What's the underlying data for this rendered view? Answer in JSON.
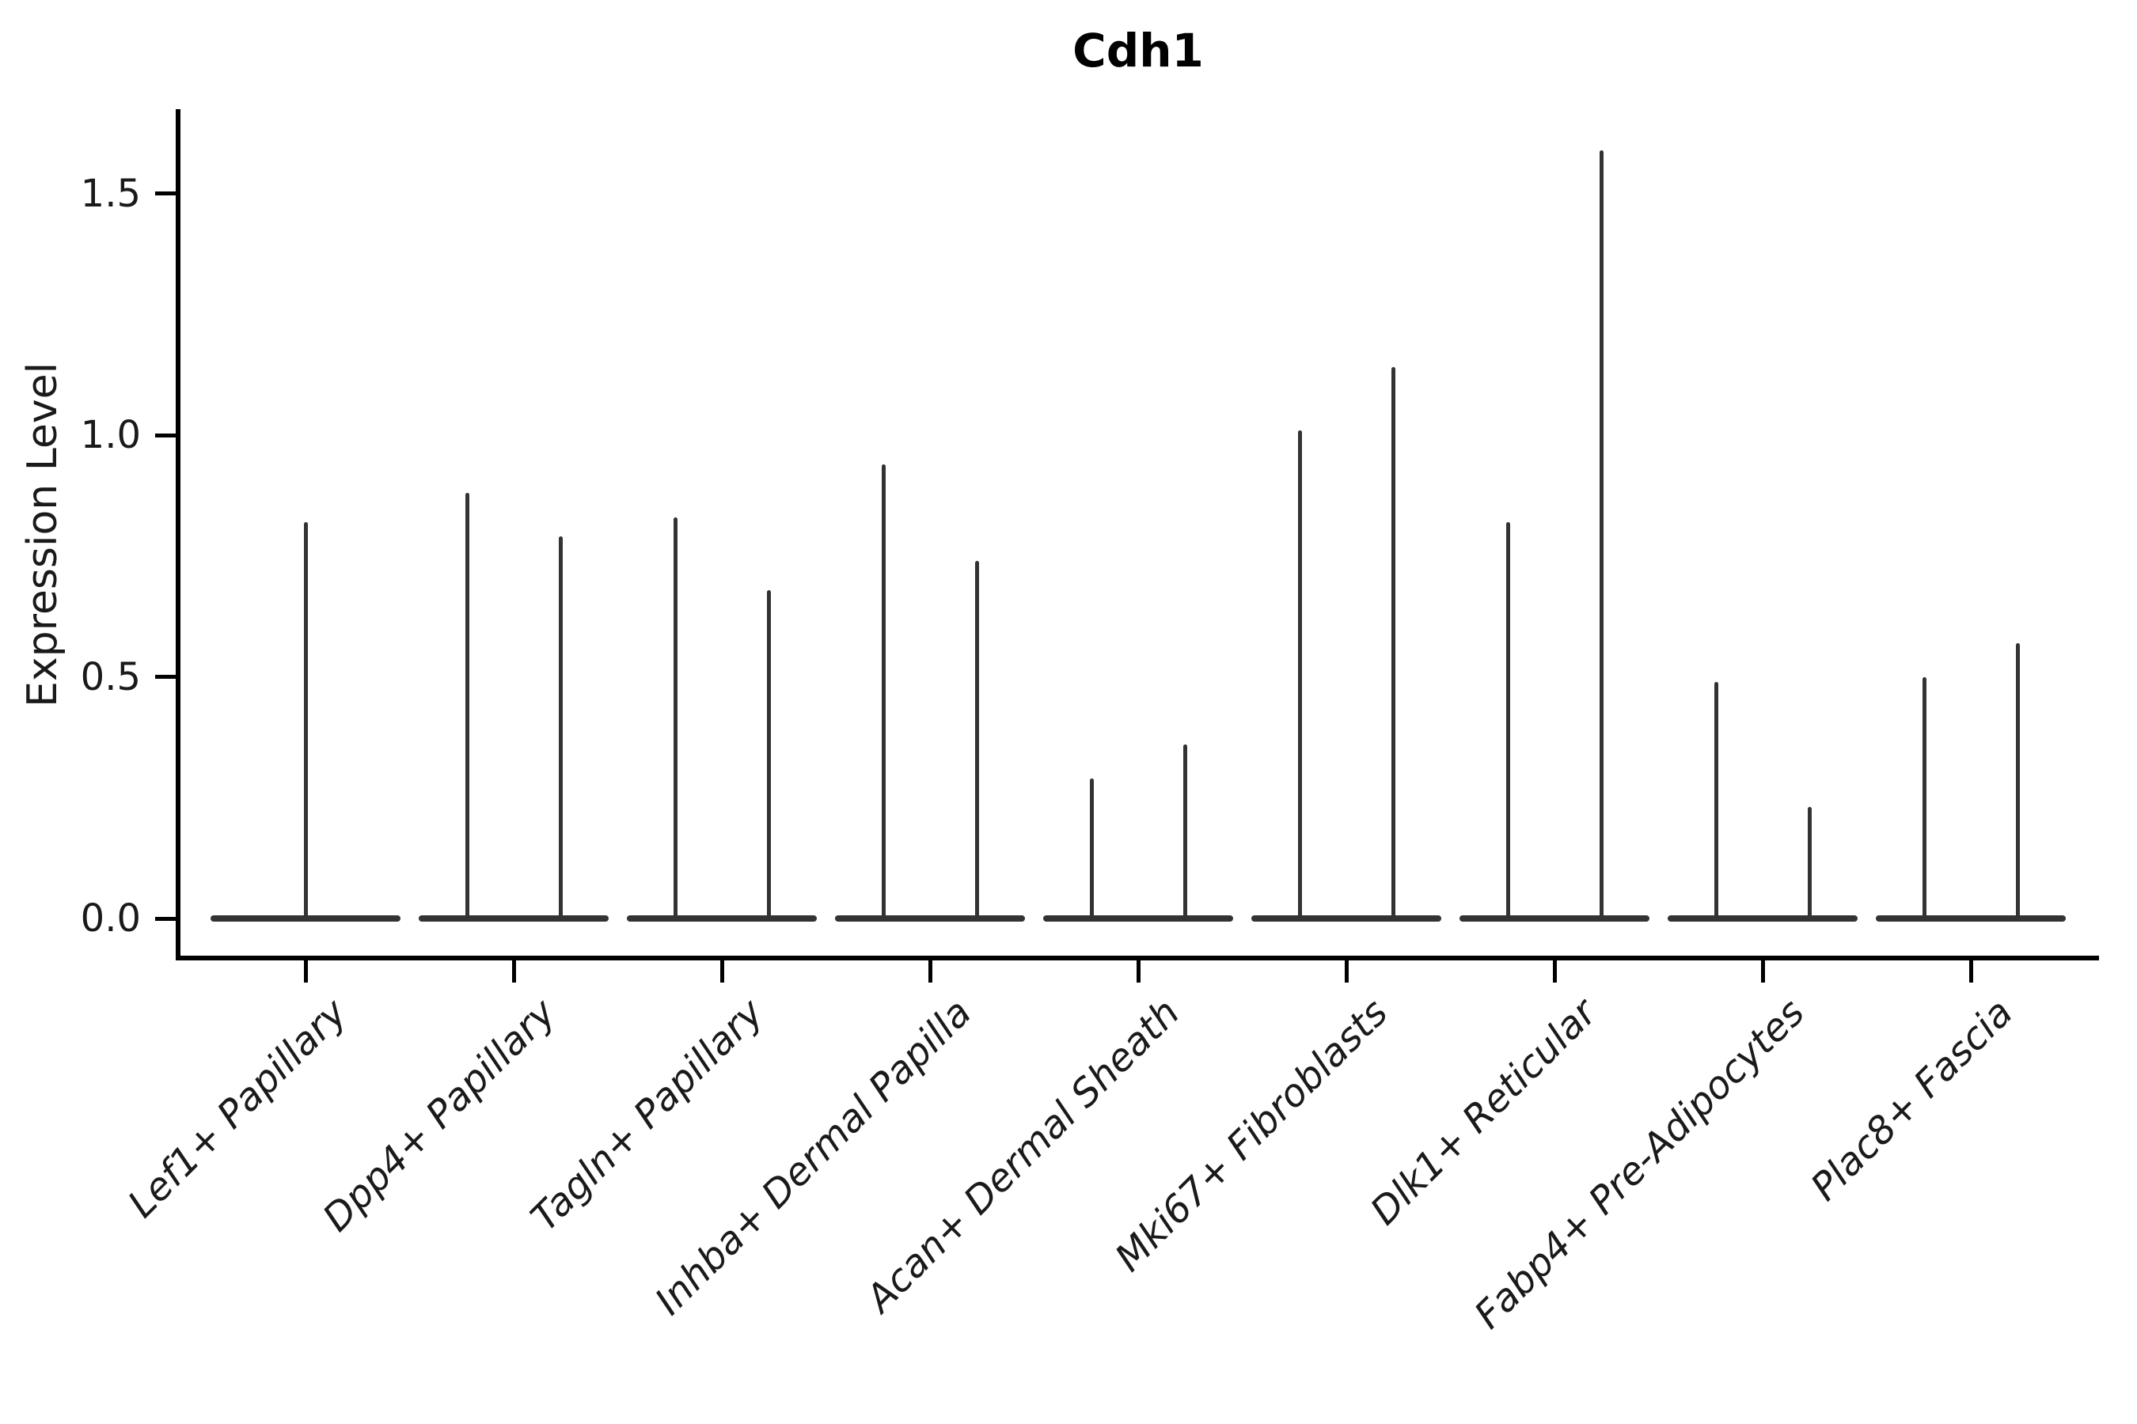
{
  "figure": {
    "background": "#ffffff"
  },
  "chart_data": {
    "type": "violin",
    "title": "Cdh1",
    "xlabel": "",
    "ylabel": "Expression Level",
    "ylim": [
      -0.09,
      1.68
    ],
    "yticks": [
      0.0,
      0.5,
      1.0,
      1.5
    ],
    "ytick_labels": [
      "0.0",
      "0.5",
      "1.0",
      "1.5"
    ],
    "grid": false,
    "legend": "none",
    "categories": [
      "Lef1+ Papillary",
      "Dpp4+ Papillary",
      "Tagln+ Papillary",
      "Inhba+ Dermal Papilla",
      "Acan+ Dermal Sheath",
      "Mki67+ Fibroblasts",
      "Dlk1+ Reticular",
      "Fabp4+ Pre-Adipocytes",
      "Plac8+ Fascia"
    ],
    "description": "Needle-shaped expression violins; most cells at 0 (flat base line), thin spike to max expression. Categories 2-9 contain two violins each (left/right); category 1 has a single centered violin.",
    "violins": [
      {
        "category": "Lef1+ Papillary",
        "spike_max_values": [
          0.82
        ]
      },
      {
        "category": "Dpp4+ Papillary",
        "spike_max_values": [
          0.88,
          0.79
        ]
      },
      {
        "category": "Tagln+ Papillary",
        "spike_max_values": [
          0.83,
          0.68
        ]
      },
      {
        "category": "Inhba+ Dermal Papilla",
        "spike_max_values": [
          0.94,
          0.74
        ]
      },
      {
        "category": "Acan+ Dermal Sheath",
        "spike_max_values": [
          0.29,
          0.36
        ]
      },
      {
        "category": "Mki67+ Fibroblasts",
        "spike_max_values": [
          1.01,
          1.14
        ]
      },
      {
        "category": "Dlk1+ Reticular",
        "spike_max_values": [
          0.82,
          1.59
        ]
      },
      {
        "category": "Fabp4+ Pre-Adipocytes",
        "spike_max_values": [
          0.49,
          0.23
        ]
      },
      {
        "category": "Plac8+ Fascia",
        "spike_max_values": [
          0.5,
          0.57
        ]
      }
    ],
    "colors": {
      "violin": "#333333",
      "axis": "#000000",
      "text": "#1a1a1a",
      "background": "#ffffff"
    }
  }
}
